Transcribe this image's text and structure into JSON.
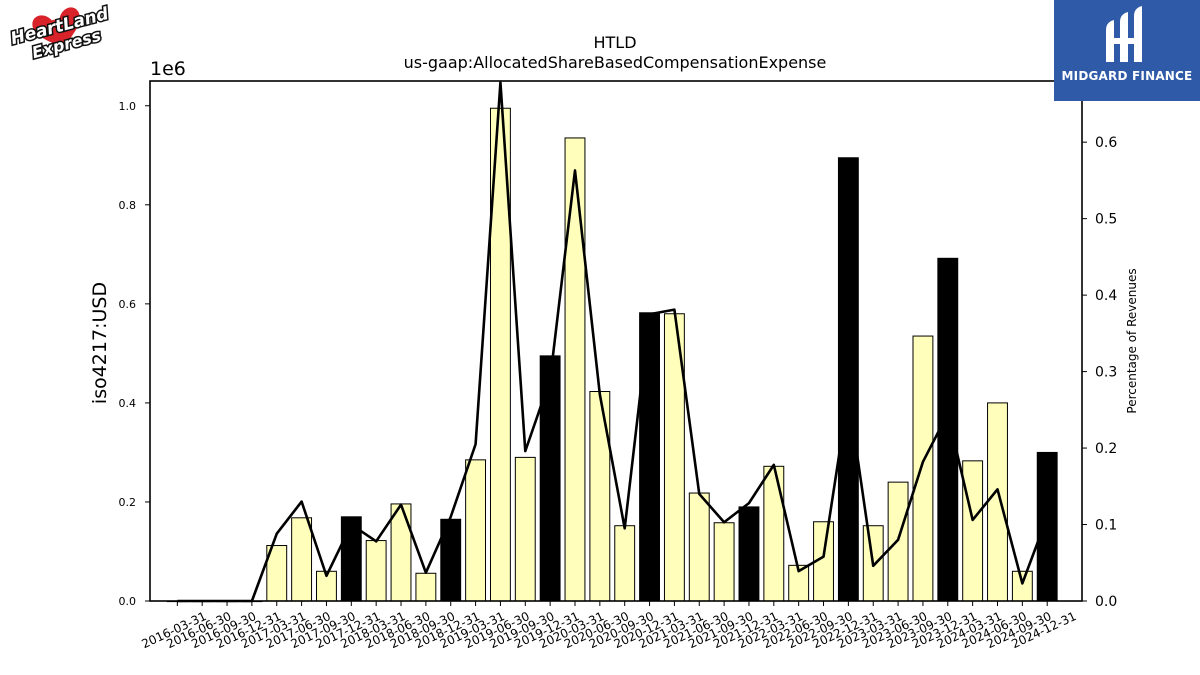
{
  "logos": {
    "left": {
      "text_line1": "HeartLand",
      "text_line2": "Express"
    },
    "right": {
      "text": "MIDGARD FINANCE"
    }
  },
  "chart_data": {
    "type": "bar",
    "title": "HTLD",
    "subtitle": "us-gaap:AllocatedShareBasedCompensationExpense",
    "ylabel": "iso4217:USD",
    "y_multiplier": "1e6",
    "y2label": "Percentage of Revenues",
    "ylim": [
      0,
      1.05
    ],
    "y2lim": [
      0,
      0.68
    ],
    "yticks": [
      "0.0",
      "0.2",
      "0.4",
      "0.6",
      "0.8",
      "1.0"
    ],
    "y2ticks": [
      "0.0",
      "0.1",
      "0.2",
      "0.3",
      "0.4",
      "0.5",
      "0.6"
    ],
    "grid": false,
    "categories": [
      "2016-03-31",
      "2016-06-30",
      "2016-09-30",
      "2016-12-31",
      "2017-03-31",
      "2017-06-30",
      "2017-09-30",
      "2017-12-31",
      "2018-03-31",
      "2018-06-30",
      "2018-09-30",
      "2018-12-31",
      "2019-03-31",
      "2019-06-30",
      "2019-09-30",
      "2019-12-31",
      "2020-03-31",
      "2020-06-30",
      "2020-09-30",
      "2020-12-31",
      "2021-03-31",
      "2021-06-30",
      "2021-09-30",
      "2021-12-31",
      "2022-03-31",
      "2022-06-30",
      "2022-09-30",
      "2022-12-31",
      "2023-03-31",
      "2023-06-30",
      "2023-09-30",
      "2023-12-31",
      "2024-03-31",
      "2024-06-30",
      "2024-09-30",
      "2024-12-31"
    ],
    "series": [
      {
        "kind": "bar",
        "values": [
          0.0,
          0.0,
          0.0,
          0.0,
          0.112,
          0.168,
          0.06,
          0.17,
          0.122,
          0.196,
          0.056,
          0.165,
          0.285,
          0.995,
          0.29,
          0.495,
          0.935,
          0.423,
          0.152,
          0.582,
          0.58,
          0.218,
          0.158,
          0.19,
          0.272,
          0.072,
          0.16,
          0.895,
          0.152,
          0.24,
          0.535,
          0.692,
          0.283,
          0.4,
          0.06,
          0.3
        ],
        "fourth_quarter": [
          false,
          false,
          false,
          true,
          false,
          false,
          false,
          true,
          false,
          false,
          false,
          true,
          false,
          false,
          false,
          true,
          false,
          false,
          false,
          true,
          false,
          false,
          false,
          true,
          false,
          false,
          false,
          true,
          false,
          false,
          false,
          true,
          false,
          false,
          false,
          true
        ],
        "color": "#ffffbb",
        "highlight_color": "#000000"
      },
      {
        "kind": "line",
        "axis": "right",
        "values": [
          0.0,
          0.0,
          0.0,
          0.0,
          0.088,
          0.13,
          0.033,
          0.1,
          0.078,
          0.126,
          0.037,
          0.11,
          0.205,
          0.678,
          0.196,
          0.29,
          0.563,
          0.27,
          0.095,
          0.375,
          0.381,
          0.14,
          0.103,
          0.128,
          0.178,
          0.039,
          0.058,
          0.27,
          0.046,
          0.08,
          0.182,
          0.245,
          0.106,
          0.146,
          0.023,
          0.11
        ],
        "color": "#000000"
      }
    ]
  }
}
